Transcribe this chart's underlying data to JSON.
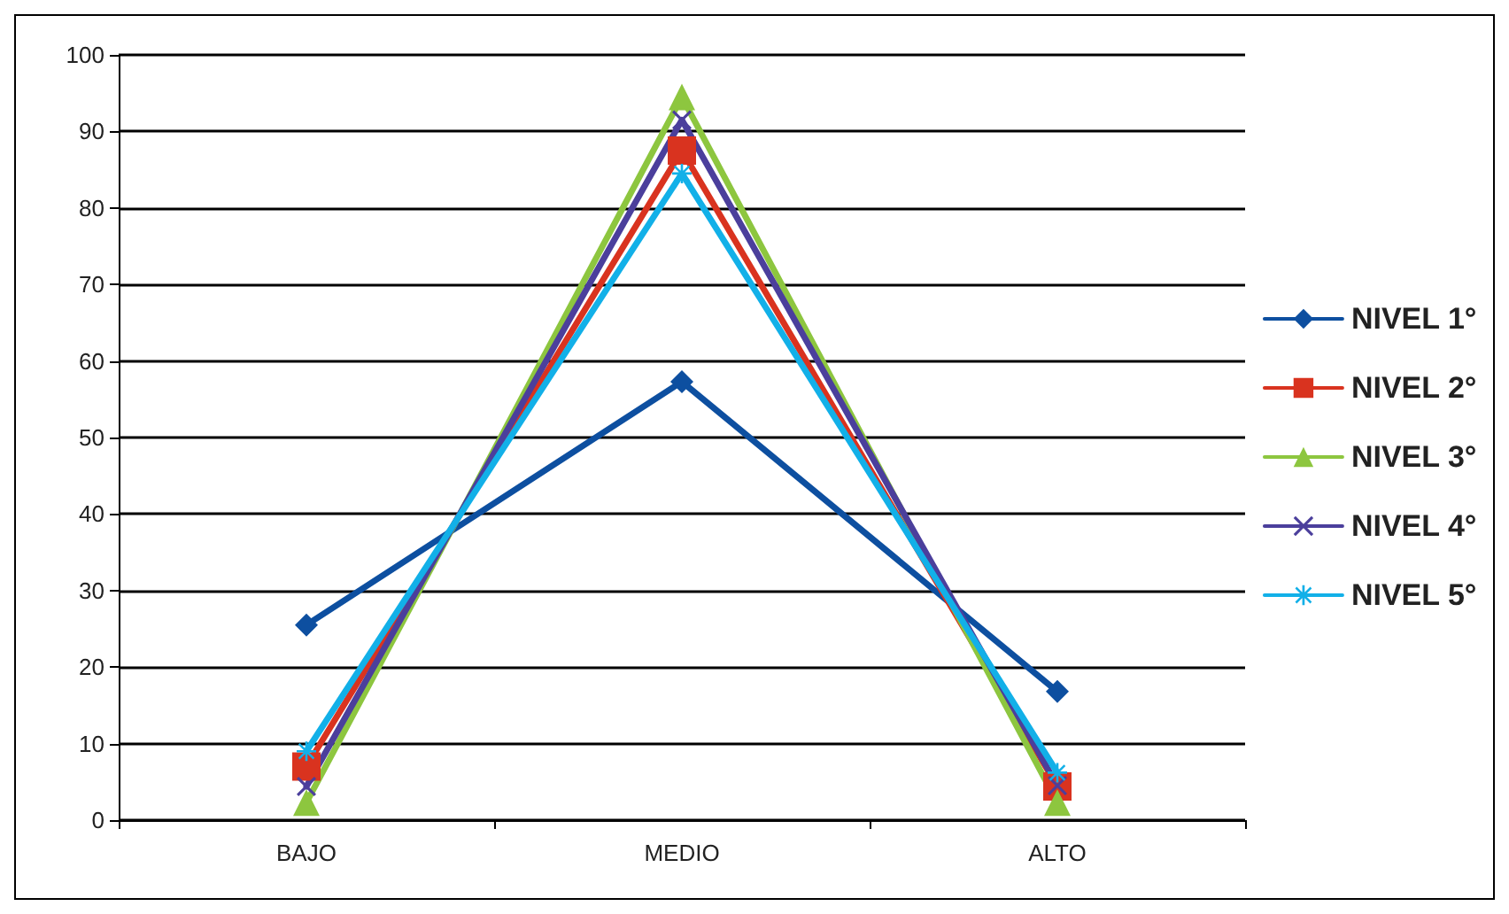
{
  "chart_data": {
    "type": "line",
    "categories": [
      "BAJO",
      "MEDIO",
      "ALTO"
    ],
    "series": [
      {
        "name": "NIVEL 1°",
        "color": "#0d4fa0",
        "marker": "diamond",
        "values": [
          25.5,
          57.3,
          16.8
        ]
      },
      {
        "name": "NIVEL 2°",
        "color": "#d9331f",
        "marker": "square",
        "values": [
          7,
          87.5,
          4.4
        ]
      },
      {
        "name": "NIVEL 3°",
        "color": "#8dc63f",
        "marker": "triangle",
        "values": [
          2.3,
          94.5,
          2.3
        ]
      },
      {
        "name": "NIVEL 4°",
        "color": "#4b3f9c",
        "marker": "cross",
        "values": [
          4.4,
          91.5,
          4.5
        ]
      },
      {
        "name": "NIVEL 5°",
        "color": "#12b0e8",
        "marker": "star",
        "values": [
          9,
          84.5,
          6.2
        ]
      }
    ],
    "ylim": [
      0,
      100
    ],
    "yticks": [
      0,
      10,
      20,
      30,
      40,
      50,
      60,
      70,
      80,
      90,
      100
    ],
    "grid": "y",
    "legend": "right",
    "line_style": "solid"
  }
}
